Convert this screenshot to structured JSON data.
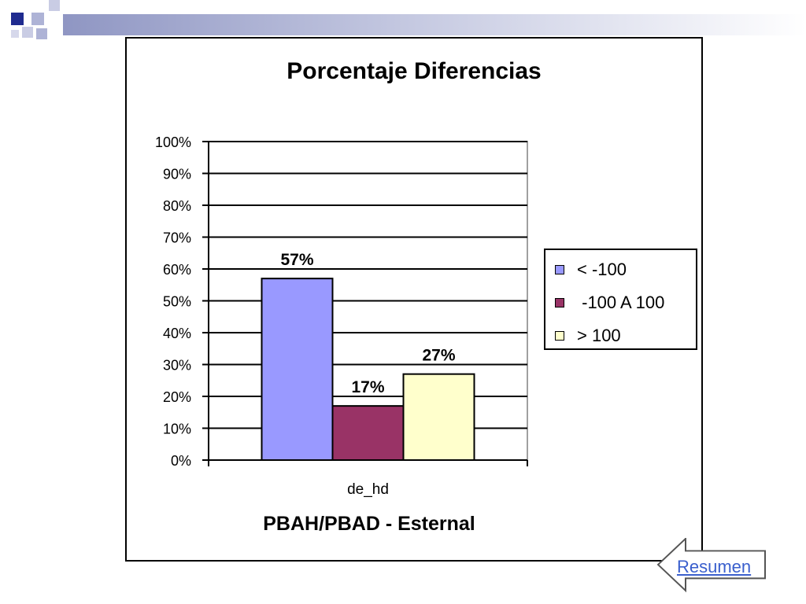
{
  "slide": {
    "nav_button_label": "Resumen",
    "accent_color": "#1f2b8f"
  },
  "chart_data": {
    "type": "bar",
    "title": "Porcentaje Diferencias",
    "xlabel": "PBAH/PBAD - Esternal",
    "ylabel": "",
    "categories": [
      "de_hd"
    ],
    "ylim": [
      0,
      100
    ],
    "y_ticks": [
      "0%",
      "10%",
      "20%",
      "30%",
      "40%",
      "50%",
      "60%",
      "70%",
      "80%",
      "90%",
      "100%"
    ],
    "grid": true,
    "legend_position": "right",
    "series": [
      {
        "name": "< -100",
        "values": [
          57
        ],
        "label": "57%",
        "color": "#9999ff"
      },
      {
        "name": " -100 A 100",
        "values": [
          17
        ],
        "label": "17%",
        "color": "#993366"
      },
      {
        "name": "> 100",
        "values": [
          27
        ],
        "label": "27%",
        "color": "#ffffcc"
      }
    ]
  }
}
